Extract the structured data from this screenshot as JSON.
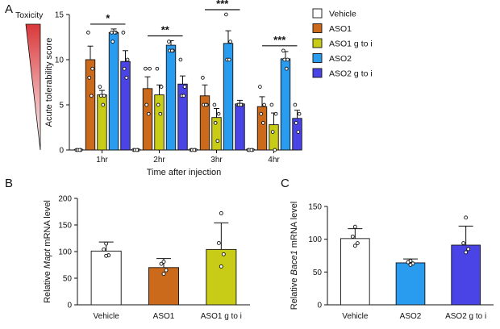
{
  "colors": {
    "Vehicle": "#ffffff",
    "ASO1": "#cc6a1c",
    "ASO1 g to i": "#c8cc17",
    "ASO2": "#2a9cf0",
    "ASO2 g to i": "#4a44e6"
  },
  "chart_data": [
    {
      "panel": "A",
      "type": "bar",
      "ylabel": "Acute tolerability score",
      "xlabel": "Time after injection",
      "ylim": [
        0,
        15
      ],
      "yticks": [
        0,
        5,
        10,
        15
      ],
      "categories": [
        "1hr",
        "2hr",
        "3hr",
        "4hr"
      ],
      "toxicity_label": "Toxicity",
      "legend": [
        "Vehicle",
        "ASO1",
        "ASO1 g to i",
        "ASO2",
        "ASO2 g to i"
      ],
      "series": [
        {
          "name": "Vehicle",
          "values": [
            0,
            0,
            0,
            0
          ],
          "errors": [
            0,
            0,
            0,
            0
          ],
          "points": [
            [
              0,
              0,
              0,
              0
            ],
            [
              0,
              0,
              0,
              0
            ],
            [
              0,
              0,
              0,
              0
            ],
            [
              0,
              0,
              0,
              0
            ]
          ]
        },
        {
          "name": "ASO1",
          "values": [
            10,
            6.8,
            6,
            4.8
          ],
          "errors": [
            1.5,
            1.3,
            1.2,
            1.1
          ],
          "points": [
            [
              13,
              9,
              8,
              6
            ],
            [
              9,
              9,
              5,
              4
            ],
            [
              8,
              5,
              5,
              5
            ],
            [
              7,
              5,
              4,
              3
            ]
          ]
        },
        {
          "name": "ASO1 g to i",
          "values": [
            6.1,
            6.1,
            3.6,
            2.8
          ],
          "errors": [
            0.5,
            1.1,
            1.0,
            1.3
          ],
          "points": [
            [
              7,
              6,
              6,
              5
            ],
            [
              9,
              7,
              5,
              4
            ],
            [
              5,
              4,
              3,
              1
            ],
            [
              5,
              4,
              2,
              0
            ]
          ]
        },
        {
          "name": "ASO2",
          "values": [
            13,
            11.6,
            11.8,
            10.1
          ],
          "errors": [
            0.4,
            0.5,
            1.4,
            0.8
          ],
          "points": [
            [
              13,
              13,
              12,
              13
            ],
            [
              12,
              11,
              11,
              11
            ],
            [
              15,
              12,
              10,
              10
            ],
            [
              11,
              10,
              10,
              9
            ]
          ]
        },
        {
          "name": "ASO2 g to i",
          "values": [
            9.8,
            7.3,
            5.1,
            3.5
          ],
          "errors": [
            1.2,
            0.9,
            0.4,
            0.9
          ],
          "points": [
            [
              13,
              10,
              9,
              8
            ],
            [
              10,
              7,
              6,
              6
            ],
            [
              5,
              5,
              5,
              5
            ],
            [
              5,
              4,
              3,
              2
            ]
          ]
        }
      ],
      "significance": [
        {
          "category": "1hr",
          "label": "*"
        },
        {
          "category": "2hr",
          "label": "**"
        },
        {
          "category": "3hr",
          "label": "***"
        },
        {
          "category": "4hr",
          "label": "***"
        }
      ]
    },
    {
      "panel": "B",
      "type": "bar",
      "ylabel_prefix": "Relative ",
      "ylabel_gene": "Mapt",
      "ylabel_suffix": " mRNA level",
      "ylim": [
        0,
        200
      ],
      "yticks": [
        0,
        50,
        100,
        150,
        200
      ],
      "categories": [
        "Vehicle",
        "ASO1",
        "ASO1 g to i"
      ],
      "values": [
        101,
        70,
        104
      ],
      "errors": [
        17,
        17,
        50
      ],
      "points": [
        [
          115,
          104,
          93,
          92
        ],
        [
          81,
          77,
          65,
          58
        ],
        [
          172,
          116,
          95,
          72
        ]
      ]
    },
    {
      "panel": "C",
      "type": "bar",
      "ylabel_prefix": "Relative ",
      "ylabel_gene": "Bace1",
      "ylabel_suffix": " mRNA level",
      "ylim": [
        0,
        150
      ],
      "yticks": [
        0,
        50,
        100,
        150
      ],
      "categories": [
        "Vehicle",
        "ASO2",
        "ASO2 g to i"
      ],
      "values": [
        101,
        64,
        91
      ],
      "errors": [
        15,
        6,
        29
      ],
      "points": [
        [
          119,
          104,
          94,
          90
        ],
        [
          67,
          65,
          63,
          61
        ],
        [
          133,
          94,
          85,
          80
        ]
      ]
    }
  ]
}
